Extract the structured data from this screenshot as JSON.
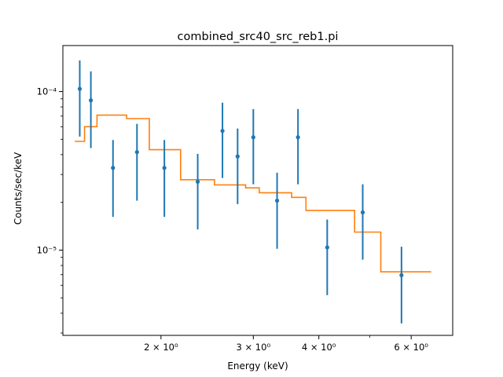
{
  "chart_data": {
    "type": "scatter",
    "title": "combined_src40_src_reb1.pi",
    "xlabel": "Energy (keV)",
    "ylabel": "Counts/sec/keV",
    "xscale": "log",
    "yscale": "log",
    "xlim": [
      1.3,
      7.2
    ],
    "ylim": [
      2.9e-06,
      0.000195
    ],
    "grid": false,
    "x_ticks": [
      {
        "value": 2,
        "label": "2 × 10⁰"
      },
      {
        "value": 3,
        "label": "3 × 10⁰"
      },
      {
        "value": 4,
        "label": "4 × 10⁰"
      },
      {
        "value": 6,
        "label": "6 × 10⁰"
      }
    ],
    "x_minor_ticks": [
      5
    ],
    "y_ticks": [
      {
        "value": 0.0001,
        "label": "10⁻⁴"
      },
      {
        "value": 1e-05,
        "label": "10⁻⁵"
      }
    ],
    "y_minor_ticks": [
      3e-06,
      4e-06,
      5e-06,
      6e-06,
      7e-06,
      8e-06,
      9e-06,
      2e-05,
      3e-05,
      4e-05,
      5e-05,
      6e-05,
      7e-05,
      8e-05,
      9e-05
    ],
    "series": [
      {
        "kind": "errorbar",
        "color": "#1f77b4",
        "points": [
          {
            "x": 1.4,
            "y": 0.000104,
            "ylo": 5.2e-05,
            "yhi": 0.000157
          },
          {
            "x": 1.47,
            "y": 8.8e-05,
            "ylo": 4.4e-05,
            "yhi": 0.000134
          },
          {
            "x": 1.62,
            "y": 3.3e-05,
            "ylo": 1.62e-05,
            "yhi": 4.95e-05
          },
          {
            "x": 1.8,
            "y": 4.15e-05,
            "ylo": 2.05e-05,
            "yhi": 6.25e-05
          },
          {
            "x": 2.03,
            "y": 3.3e-05,
            "ylo": 1.62e-05,
            "yhi": 4.95e-05
          },
          {
            "x": 2.35,
            "y": 2.7e-05,
            "ylo": 1.35e-05,
            "yhi": 4.05e-05
          },
          {
            "x": 2.62,
            "y": 5.65e-05,
            "ylo": 2.85e-05,
            "yhi": 8.5e-05
          },
          {
            "x": 2.8,
            "y": 3.9e-05,
            "ylo": 1.95e-05,
            "yhi": 5.85e-05
          },
          {
            "x": 3.0,
            "y": 5.15e-05,
            "ylo": 2.6e-05,
            "yhi": 7.75e-05
          },
          {
            "x": 3.33,
            "y": 2.05e-05,
            "ylo": 1.02e-05,
            "yhi": 3.08e-05
          },
          {
            "x": 3.65,
            "y": 5.15e-05,
            "ylo": 2.6e-05,
            "yhi": 7.75e-05
          },
          {
            "x": 4.15,
            "y": 1.04e-05,
            "ylo": 5.2e-06,
            "yhi": 1.56e-05
          },
          {
            "x": 4.85,
            "y": 1.73e-05,
            "ylo": 8.7e-06,
            "yhi": 2.6e-05
          },
          {
            "x": 5.75,
            "y": 6.95e-06,
            "ylo": 3.45e-06,
            "yhi": 1.05e-05
          }
        ]
      },
      {
        "kind": "step",
        "color": "#ff7f0e",
        "steps": [
          {
            "x0": 1.37,
            "x1": 1.43,
            "y": 4.85e-05
          },
          {
            "x0": 1.43,
            "x1": 1.51,
            "y": 6e-05
          },
          {
            "x0": 1.51,
            "x1": 1.72,
            "y": 7.1e-05
          },
          {
            "x0": 1.72,
            "x1": 1.9,
            "y": 6.75e-05
          },
          {
            "x0": 1.9,
            "x1": 2.18,
            "y": 4.3e-05
          },
          {
            "x0": 2.18,
            "x1": 2.53,
            "y": 2.78e-05
          },
          {
            "x0": 2.53,
            "x1": 2.9,
            "y": 2.58e-05
          },
          {
            "x0": 2.9,
            "x1": 3.08,
            "y": 2.47e-05
          },
          {
            "x0": 3.08,
            "x1": 3.55,
            "y": 2.3e-05
          },
          {
            "x0": 3.55,
            "x1": 3.78,
            "y": 2.15e-05
          },
          {
            "x0": 3.78,
            "x1": 4.68,
            "y": 1.78e-05
          },
          {
            "x0": 4.68,
            "x1": 5.25,
            "y": 1.3e-05
          },
          {
            "x0": 5.25,
            "x1": 6.55,
            "y": 7.3e-06
          }
        ]
      }
    ]
  }
}
